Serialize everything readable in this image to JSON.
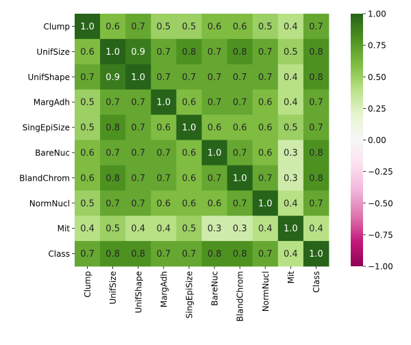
{
  "chart_data": {
    "type": "heatmap",
    "title": "",
    "xlabel": "",
    "ylabel": "",
    "row_labels": [
      "Clump",
      "UnifSize",
      "UnifShape",
      "MargAdh",
      "SingEpiSize",
      "BareNuc",
      "BlandChrom",
      "NormNucl",
      "Mit",
      "Class"
    ],
    "col_labels": [
      "Clump",
      "UnifSize",
      "UnifShape",
      "MargAdh",
      "SingEpiSize",
      "BareNuc",
      "BlandChrom",
      "NormNucl",
      "Mit",
      "Class"
    ],
    "values": [
      [
        1.0,
        0.6,
        0.7,
        0.5,
        0.5,
        0.6,
        0.6,
        0.5,
        0.4,
        0.7
      ],
      [
        0.6,
        1.0,
        0.9,
        0.7,
        0.8,
        0.7,
        0.8,
        0.7,
        0.5,
        0.8
      ],
      [
        0.7,
        0.9,
        1.0,
        0.7,
        0.7,
        0.7,
        0.7,
        0.7,
        0.4,
        0.8
      ],
      [
        0.5,
        0.7,
        0.7,
        1.0,
        0.6,
        0.7,
        0.7,
        0.6,
        0.4,
        0.7
      ],
      [
        0.5,
        0.8,
        0.7,
        0.6,
        1.0,
        0.6,
        0.6,
        0.6,
        0.5,
        0.7
      ],
      [
        0.6,
        0.7,
        0.7,
        0.7,
        0.6,
        1.0,
        0.7,
        0.6,
        0.3,
        0.8
      ],
      [
        0.6,
        0.8,
        0.7,
        0.7,
        0.6,
        0.7,
        1.0,
        0.7,
        0.3,
        0.8
      ],
      [
        0.5,
        0.7,
        0.7,
        0.6,
        0.6,
        0.6,
        0.7,
        1.0,
        0.4,
        0.7
      ],
      [
        0.4,
        0.5,
        0.4,
        0.4,
        0.5,
        0.3,
        0.3,
        0.4,
        1.0,
        0.4
      ],
      [
        0.7,
        0.8,
        0.8,
        0.7,
        0.7,
        0.8,
        0.8,
        0.7,
        0.4,
        1.0
      ]
    ],
    "value_format": "0.0",
    "colormap": "PiYG",
    "vmin": -1.0,
    "vmax": 1.0,
    "colorbar": {
      "ticks": [
        -1.0,
        -0.75,
        -0.5,
        -0.25,
        0.0,
        0.25,
        0.5,
        0.75,
        1.0
      ],
      "tick_labels": [
        "−1.00",
        "−0.75",
        "−0.50",
        "−0.25",
        "0.00",
        "0.25",
        "0.50",
        "0.75",
        "1.00"
      ],
      "placement": "right"
    },
    "colormap_stops": [
      {
        "v": -1.0,
        "color": "#8e0152"
      },
      {
        "v": -0.8,
        "color": "#c51b7d"
      },
      {
        "v": -0.6,
        "color": "#de77ae"
      },
      {
        "v": -0.4,
        "color": "#f1b6da"
      },
      {
        "v": -0.2,
        "color": "#fde0ef"
      },
      {
        "v": 0.0,
        "color": "#f7f7f7"
      },
      {
        "v": 0.2,
        "color": "#e6f5d0"
      },
      {
        "v": 0.4,
        "color": "#b8e186"
      },
      {
        "v": 0.6,
        "color": "#7fbc41"
      },
      {
        "v": 0.8,
        "color": "#4d9221"
      },
      {
        "v": 1.0,
        "color": "#276419"
      }
    ],
    "grid": false
  }
}
